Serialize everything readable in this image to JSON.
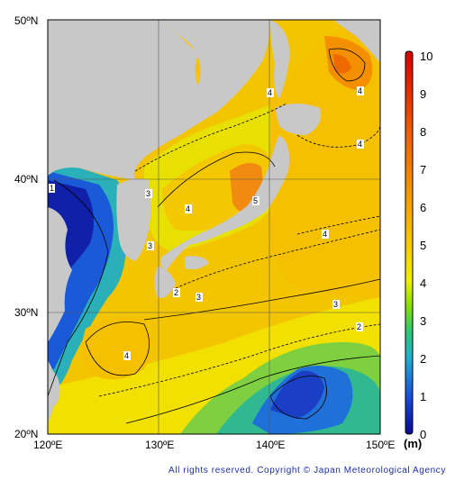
{
  "map": {
    "lat_labels": [
      "50ºN",
      "40ºN",
      "30ºN",
      "20ºN"
    ],
    "lon_labels": [
      "120ºE",
      "130ºE",
      "140ºE",
      "150ºE"
    ],
    "contour_labels": [
      "1",
      "2",
      "3",
      "3",
      "3",
      "4",
      "4",
      "4",
      "4",
      "4",
      "5",
      "3",
      "2",
      "4"
    ]
  },
  "colorbar": {
    "ticks": [
      "0",
      "1",
      "2",
      "3",
      "4",
      "5",
      "6",
      "7",
      "8",
      "9",
      "10"
    ],
    "unit": "(m)",
    "colors": [
      "#0a1aa8",
      "#1a60e0",
      "#1fb4c8",
      "#2fc870",
      "#8ee000",
      "#f2f000",
      "#f8c000",
      "#f49000",
      "#ee6000",
      "#e83a00",
      "#d80000"
    ]
  },
  "footer": {
    "copyright": "All rights reserved. Copyright © Japan Meteorological Agency"
  }
}
